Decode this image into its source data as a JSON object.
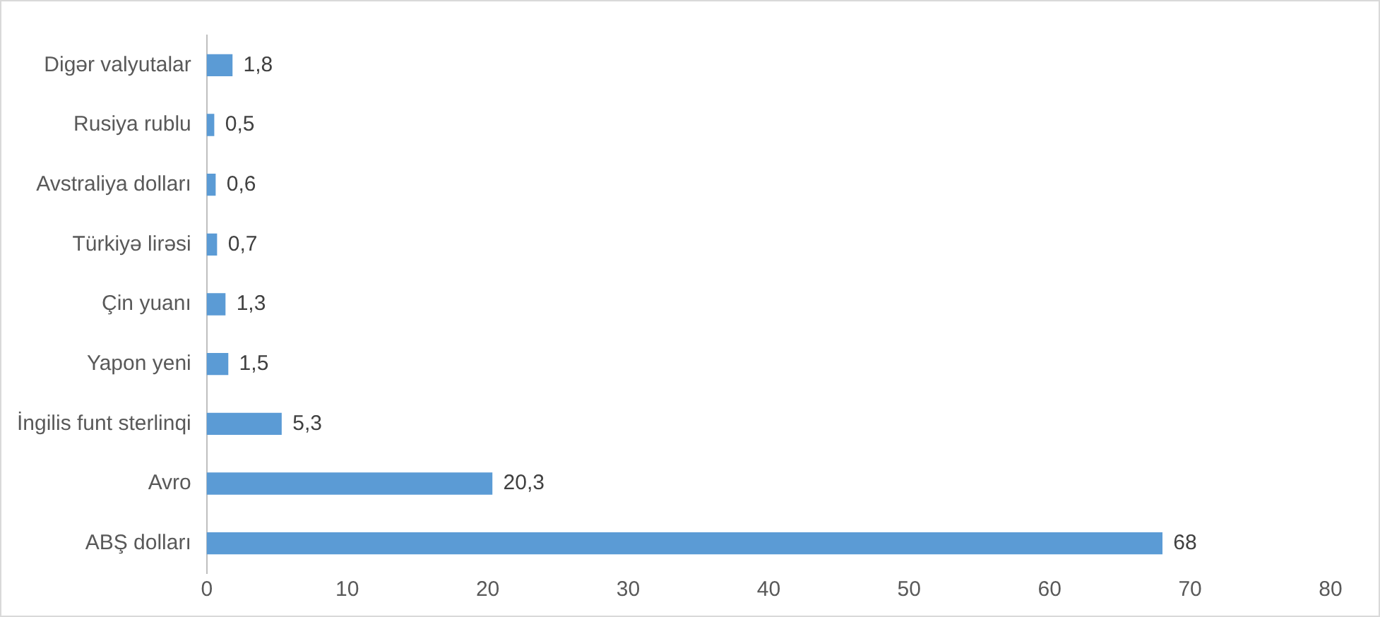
{
  "chart_data": {
    "type": "bar",
    "orientation": "horizontal",
    "categories": [
      "Digər valyutalar",
      "Rusiya rublu",
      "Avstraliya dolları",
      "Türkiyə lirəsi",
      "Çin yuanı",
      "Yapon yeni",
      "İngilis funt sterlinqi",
      "Avro",
      "ABŞ dolları"
    ],
    "values": [
      1.8,
      0.5,
      0.6,
      0.7,
      1.3,
      1.5,
      5.3,
      20.3,
      68
    ],
    "value_labels": [
      "1,8",
      "0,5",
      "0,6",
      "0,7",
      "1,3",
      "1,5",
      "5,3",
      "20,3",
      "68"
    ],
    "color": "#5b9bd5",
    "xlim": [
      0,
      80
    ],
    "xticks": [
      0,
      10,
      20,
      30,
      40,
      50,
      60,
      70,
      80
    ]
  }
}
